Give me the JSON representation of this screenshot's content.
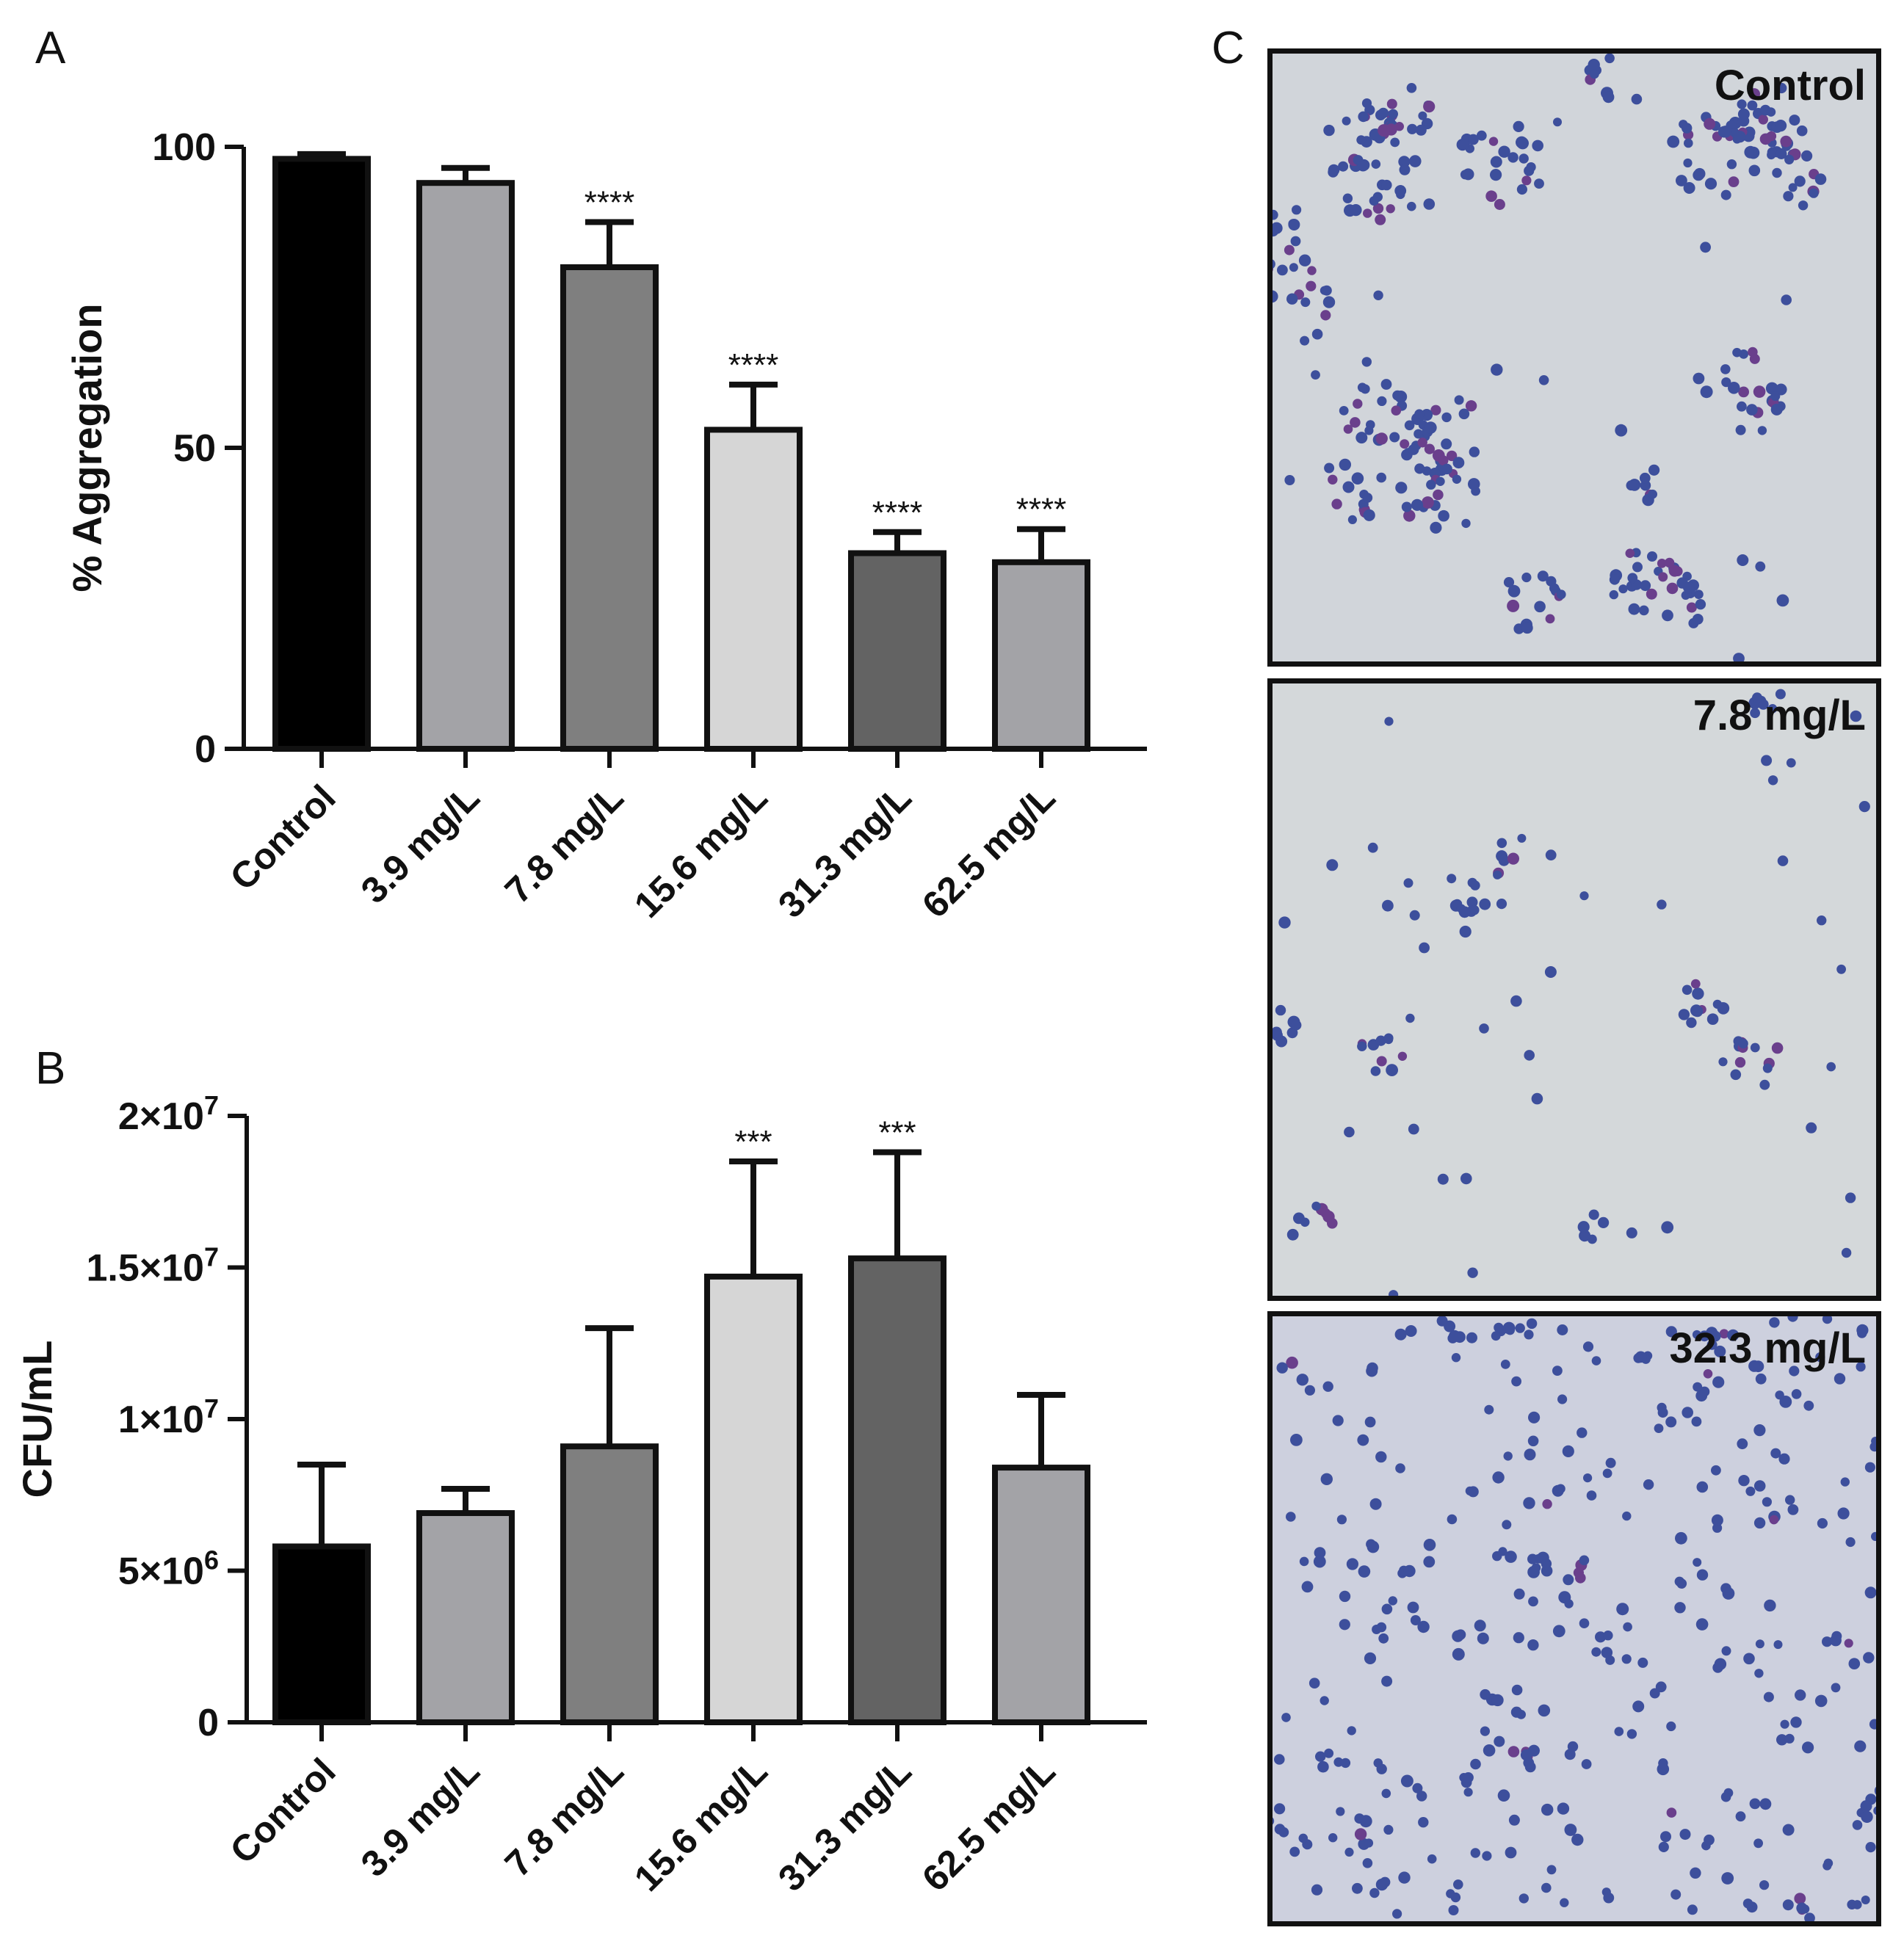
{
  "panels": {
    "a": "A",
    "b": "B",
    "c": "C"
  },
  "colors": {
    "control": "#000000",
    "c3_9": "#a3a3a7",
    "c7_8": "#7f7f7f",
    "c15_6": "#d6d6d6",
    "c31_3": "#636363",
    "c62_5": "#a3a3a7",
    "stain": "#3d4f9c",
    "slide_c": "#d1d5da",
    "slide_78": "#d4d8da",
    "slide_323": "#cdd0de"
  },
  "chart_data": [
    {
      "type": "bar",
      "ylabel": "% Aggregation",
      "xlabel": "",
      "categories": [
        "Control",
        "3.9 mg/L",
        "7.8 mg/L",
        "15.6 mg/L",
        "31.3 mg/L",
        "62.5 mg/L"
      ],
      "values": [
        98,
        94,
        80,
        53,
        32.5,
        31
      ],
      "errors": [
        0.8,
        2.5,
        7.5,
        7.5,
        3.5,
        5.5
      ],
      "significance": [
        "",
        "",
        "****",
        "****",
        "****",
        "****"
      ],
      "ylim": [
        0,
        100
      ],
      "ticks": [
        0,
        50,
        100
      ],
      "tick_labels": [
        "0",
        "50",
        "100"
      ],
      "grid": false
    },
    {
      "type": "bar",
      "ylabel": "CFU/mL",
      "xlabel": "",
      "categories": [
        "Control",
        "3.9 mg/L",
        "7.8 mg/L",
        "15.6 mg/L",
        "31.3 mg/L",
        "62.5 mg/L"
      ],
      "values": [
        5800000,
        6900000,
        9100000,
        14700000,
        15300000,
        8400000
      ],
      "errors": [
        2700000,
        800000,
        3900000,
        3800000,
        3500000,
        2400000
      ],
      "significance": [
        "",
        "",
        "",
        "***",
        "***",
        ""
      ],
      "ylim": [
        0,
        20000000
      ],
      "ticks": [
        0,
        5000000,
        10000000,
        15000000,
        20000000
      ],
      "tick_labels": [
        {
          "base": "0",
          "exp": ""
        },
        {
          "base": "5×10",
          "exp": "6"
        },
        {
          "base": "1×10",
          "exp": "7"
        },
        {
          "base": "1.5×10",
          "exp": "7"
        },
        {
          "base": "2×10",
          "exp": "7"
        }
      ],
      "grid": false
    }
  ],
  "micrographs": [
    {
      "label": "Control"
    },
    {
      "label": "7.8 mg/L"
    },
    {
      "label": "32.3 mg/L"
    }
  ]
}
